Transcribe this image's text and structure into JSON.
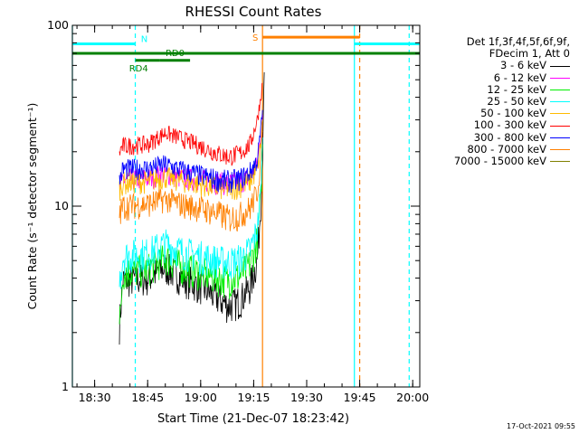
{
  "chart_data": {
    "type": "line",
    "title": "RHESSI Count Rates",
    "xlabel": "Start Time (21-Dec-07 18:23:42)",
    "ylabel": "Count Rate (s⁻¹ detector segment⁻¹)",
    "yscale": "log",
    "ylim": [
      1,
      100
    ],
    "xlim": [
      "18:23:42",
      "20:02:00"
    ],
    "x_ticks": [
      "18:30",
      "18:45",
      "19:00",
      "19:15",
      "19:30",
      "19:45",
      "20:00"
    ],
    "y_ticks": [
      "1",
      "10",
      "100"
    ],
    "legend_header": [
      "Det 1f,3f,4f,5f,6f,9f,",
      "FDecim 1, Att 0"
    ],
    "legend_position": "right",
    "series": [
      {
        "name": "3 - 6 keV",
        "color": "#000000",
        "points": [
          [
            "18:37",
            2.2
          ],
          [
            "18:38",
            3.9
          ],
          [
            "18:45",
            4.0
          ],
          [
            "18:50",
            4.6
          ],
          [
            "18:55",
            4.0
          ],
          [
            "19:00",
            3.6
          ],
          [
            "19:05",
            3.1
          ],
          [
            "19:08",
            2.8
          ],
          [
            "19:11",
            3.0
          ],
          [
            "19:14",
            3.6
          ],
          [
            "19:16",
            5.0
          ],
          [
            "19:17",
            10.0
          ],
          [
            "19:17:30",
            20.0
          ],
          [
            "19:18",
            55.0
          ]
        ]
      },
      {
        "name": "6 - 12 keV",
        "color": "#ff00ff",
        "points": [
          [
            "18:37",
            12.0
          ],
          [
            "18:38",
            14.0
          ],
          [
            "18:45",
            14.3
          ],
          [
            "18:50",
            15.2
          ],
          [
            "18:55",
            14.3
          ],
          [
            "19:00",
            14.0
          ],
          [
            "19:05",
            13.5
          ],
          [
            "19:08",
            13.3
          ],
          [
            "19:11",
            13.6
          ],
          [
            "19:14",
            14.5
          ],
          [
            "19:16",
            17.0
          ],
          [
            "19:17",
            25.0
          ],
          [
            "19:17:30",
            32.0
          ]
        ]
      },
      {
        "name": "12 - 25 keV",
        "color": "#00ee00",
        "points": [
          [
            "18:37",
            2.1
          ],
          [
            "18:38",
            4.3
          ],
          [
            "18:45",
            4.5
          ],
          [
            "18:50",
            5.2
          ],
          [
            "18:55",
            4.6
          ],
          [
            "19:00",
            4.3
          ],
          [
            "19:05",
            4.0
          ],
          [
            "19:08",
            3.9
          ],
          [
            "19:11",
            4.1
          ],
          [
            "19:14",
            4.8
          ],
          [
            "19:16",
            6.5
          ],
          [
            "19:17",
            11.0
          ],
          [
            "19:17:30",
            22.0
          ]
        ]
      },
      {
        "name": "25 - 50 keV",
        "color": "#00ffff",
        "points": [
          [
            "18:37",
            3.8
          ],
          [
            "18:38",
            5.3
          ],
          [
            "18:45",
            5.5
          ],
          [
            "18:50",
            6.2
          ],
          [
            "18:55",
            5.6
          ],
          [
            "19:00",
            5.3
          ],
          [
            "19:05",
            5.0
          ],
          [
            "19:08",
            4.9
          ],
          [
            "19:11",
            5.1
          ],
          [
            "19:14",
            5.7
          ],
          [
            "19:16",
            7.5
          ],
          [
            "19:17",
            12.0
          ],
          [
            "19:17:30",
            24.0
          ]
        ]
      },
      {
        "name": "50 - 100 keV",
        "color": "#ffbb00",
        "points": [
          [
            "18:37",
            12.5
          ],
          [
            "18:38",
            13.5
          ],
          [
            "18:45",
            13.7
          ],
          [
            "18:50",
            14.5
          ],
          [
            "18:55",
            13.8
          ],
          [
            "19:00",
            13.2
          ],
          [
            "19:05",
            12.7
          ],
          [
            "19:08",
            12.5
          ],
          [
            "19:11",
            12.9
          ],
          [
            "19:14",
            13.8
          ],
          [
            "19:16",
            16.0
          ],
          [
            "19:17",
            22.0
          ],
          [
            "19:17:30",
            30.0
          ]
        ]
      },
      {
        "name": "100 - 300 keV",
        "color": "#ff0000",
        "points": [
          [
            "18:37",
            20.0
          ],
          [
            "18:38",
            21.5
          ],
          [
            "18:45",
            22.0
          ],
          [
            "18:50",
            25.5
          ],
          [
            "18:55",
            23.5
          ],
          [
            "19:00",
            21.5
          ],
          [
            "19:05",
            19.5
          ],
          [
            "19:08",
            18.8
          ],
          [
            "19:11",
            19.5
          ],
          [
            "19:14",
            22.0
          ],
          [
            "19:16",
            30.0
          ],
          [
            "19:17",
            40.0
          ],
          [
            "19:17:30",
            48.0
          ]
        ]
      },
      {
        "name": "300 - 800 keV",
        "color": "#0000ff",
        "points": [
          [
            "18:37",
            14.0
          ],
          [
            "18:38",
            16.0
          ],
          [
            "18:45",
            16.2
          ],
          [
            "18:50",
            17.0
          ],
          [
            "18:55",
            15.8
          ],
          [
            "19:00",
            14.8
          ],
          [
            "19:05",
            14.0
          ],
          [
            "19:08",
            13.8
          ],
          [
            "19:11",
            14.1
          ],
          [
            "19:14",
            15.5
          ],
          [
            "19:16",
            18.0
          ],
          [
            "19:17",
            26.0
          ],
          [
            "19:17:30",
            34.0
          ]
        ]
      },
      {
        "name": "800 - 7000 keV",
        "color": "#ff8000",
        "points": [
          [
            "18:37",
            9.0
          ],
          [
            "18:38",
            10.0
          ],
          [
            "18:45",
            10.3
          ],
          [
            "18:50",
            11.0
          ],
          [
            "18:55",
            10.2
          ],
          [
            "19:00",
            9.8
          ],
          [
            "19:05",
            9.1
          ],
          [
            "19:08",
            8.6
          ],
          [
            "19:11",
            8.9
          ],
          [
            "19:14",
            9.8
          ],
          [
            "19:16",
            12.0
          ],
          [
            "19:17",
            18.0
          ],
          [
            "19:17:30",
            26.0
          ]
        ]
      },
      {
        "name": "7000 - 15000 keV",
        "color": "#808000",
        "points": []
      }
    ],
    "annotations": [
      {
        "type": "bar",
        "label": "N",
        "color": "#00ffff",
        "y": 79,
        "x_start": "18:23:42",
        "x_end": "18:41:30"
      },
      {
        "type": "bar",
        "label": "",
        "color": "#00ffff",
        "y": 79,
        "x_start": "19:43:30",
        "x_end": "20:02:00"
      },
      {
        "type": "bar",
        "label": "",
        "color": "#008000",
        "y": 70,
        "x_start": "18:23:42",
        "x_end": "20:02:00"
      },
      {
        "type": "bar",
        "label": "RD4",
        "color": "#008000",
        "y": 64,
        "x_start": "18:41:30",
        "x_end": "18:48:30"
      },
      {
        "type": "bar",
        "label": "RD0",
        "color": "#008000",
        "y": 64,
        "x_start": "18:48:30",
        "x_end": "18:57:00"
      },
      {
        "type": "bar",
        "label": "S",
        "color": "#ff8000",
        "y": 86,
        "x_start": "19:17:30",
        "x_end": "19:45:00"
      },
      {
        "type": "vline",
        "label": "",
        "color": "#00ffff",
        "style": "solid",
        "x": "18:23:42"
      },
      {
        "type": "vline",
        "label": "",
        "color": "#00ffff",
        "style": "dashed",
        "x": "18:41:30"
      },
      {
        "type": "vline",
        "label": "",
        "color": "#ff8000",
        "style": "solid",
        "x": "19:17:30"
      },
      {
        "type": "vline",
        "label": "",
        "color": "#00ffff",
        "style": "solid",
        "x": "19:43:30"
      },
      {
        "type": "vline",
        "label": "",
        "color": "#ff8000",
        "style": "dashed",
        "x": "19:45:00"
      },
      {
        "type": "vline",
        "label": "",
        "color": "#00ffff",
        "style": "dashed",
        "x": "19:59:00"
      }
    ]
  },
  "timestamp": "17-Oct-2021 09:55"
}
